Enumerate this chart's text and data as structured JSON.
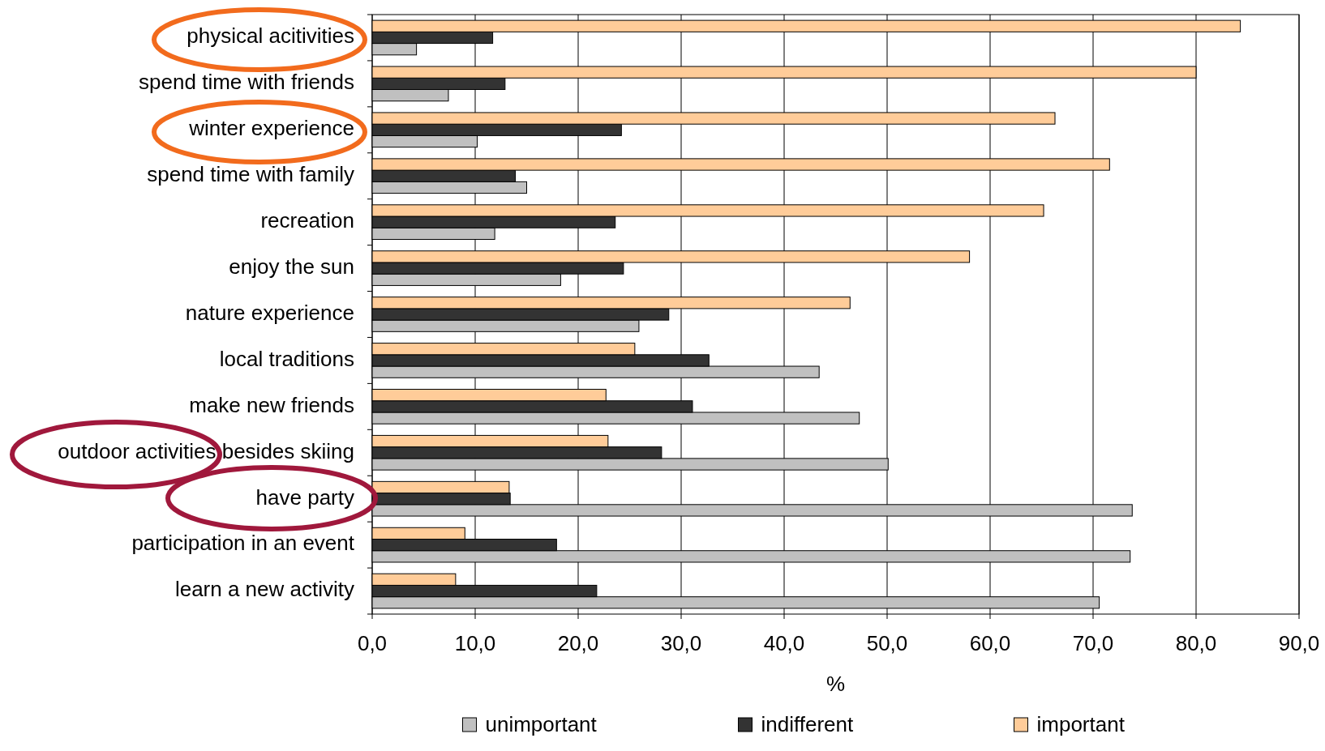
{
  "chart_data": {
    "type": "bar",
    "orientation": "horizontal",
    "xlabel": "%",
    "categories": [
      "physical acitivities",
      "spend time with friends",
      "winter experience",
      "spend time with family",
      "recreation",
      "enjoy the sun",
      "nature experience",
      "local traditions",
      "make new friends",
      "outdoor activities besides skiing",
      "have party",
      "participation in an event",
      "learn a new activity"
    ],
    "series": [
      {
        "name": "unimportant",
        "color": "#c0c0c0",
        "values": [
          4.3,
          7.4,
          10.2,
          15.0,
          11.9,
          18.3,
          25.9,
          43.4,
          47.3,
          50.1,
          73.8,
          73.6,
          70.6
        ]
      },
      {
        "name": "indifferent",
        "color": "#333333",
        "values": [
          11.7,
          12.9,
          24.2,
          13.9,
          23.6,
          24.4,
          28.8,
          32.7,
          31.1,
          28.1,
          13.4,
          17.9,
          21.8
        ]
      },
      {
        "name": "important",
        "color": "#ffcc99",
        "values": [
          84.3,
          80.0,
          66.3,
          71.6,
          65.2,
          58.0,
          46.4,
          25.5,
          22.7,
          22.9,
          13.3,
          9.0,
          8.1
        ]
      }
    ],
    "xlim": [
      0,
      90
    ],
    "xticks": [
      {
        "value": 0,
        "label": "0,0"
      },
      {
        "value": 10,
        "label": "10,0"
      },
      {
        "value": 20,
        "label": "20,0"
      },
      {
        "value": 30,
        "label": "30,0"
      },
      {
        "value": 40,
        "label": "40,0"
      },
      {
        "value": 50,
        "label": "50,0"
      },
      {
        "value": 60,
        "label": "60,0"
      },
      {
        "value": 70,
        "label": "70,0"
      },
      {
        "value": 80,
        "label": "80,0"
      },
      {
        "value": 90,
        "label": "90,0"
      }
    ],
    "grid": "x",
    "legend": "bottom"
  }
}
